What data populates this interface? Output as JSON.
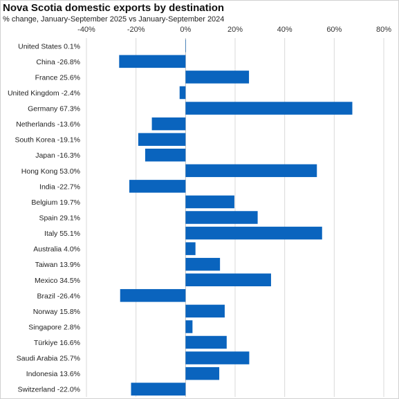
{
  "chart_data": {
    "type": "bar",
    "orientation": "horizontal",
    "title": "Nova Scotia domestic exports by destination",
    "subtitle": "% change, January-September  2025 vs January-September  2024",
    "xlabel": "",
    "ylabel": "",
    "xlim": [
      -40,
      80
    ],
    "xticks": [
      -40,
      -20,
      0,
      20,
      40,
      60,
      80
    ],
    "xtick_labels": [
      "-40%",
      "-20%",
      "0%",
      "20%",
      "40%",
      "60%",
      "80%"
    ],
    "x_axis_position": "top",
    "grid": "vertical",
    "legend": "none",
    "bar_color": "#0A64BE",
    "categories": [
      "United States 0.1%",
      "China -26.8%",
      "France 25.6%",
      "United Kingdom -2.4%",
      "Germany 67.3%",
      "Netherlands -13.6%",
      "South Korea -19.1%",
      "Japan -16.3%",
      "Hong Kong 53.0%",
      "India -22.7%",
      "Belgium 19.7%",
      "Spain 29.1%",
      "Italy 55.1%",
      "Australia 4.0%",
      "Taiwan 13.9%",
      "Mexico 34.5%",
      "Brazil -26.4%",
      "Norway 15.8%",
      "Singapore 2.8%",
      "Türkiye 16.6%",
      "Saudi Arabia 25.7%",
      "Indonesia 13.6%",
      "Switzerland -22.0%"
    ],
    "values": [
      0.1,
      -26.8,
      25.6,
      -2.4,
      67.3,
      -13.6,
      -19.1,
      -16.3,
      53.0,
      -22.7,
      19.7,
      29.1,
      55.1,
      4.0,
      13.9,
      34.5,
      -26.4,
      15.8,
      2.8,
      16.6,
      25.7,
      13.6,
      -22.0
    ]
  }
}
